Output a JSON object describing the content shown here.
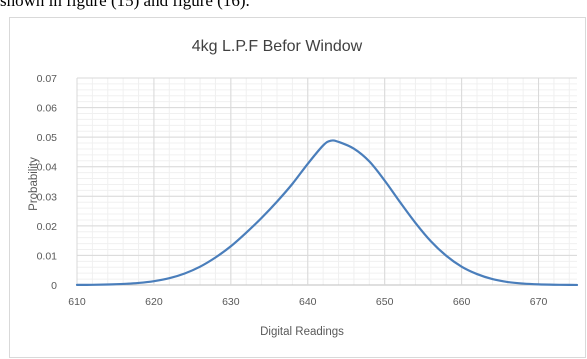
{
  "caption_fragment": "shown in figure (15) and figure (16).",
  "chart_data": {
    "type": "line",
    "title": "4kg L.P.F Befor Window",
    "xlabel": "Digital Readings",
    "ylabel": "Probability",
    "xlim": [
      610,
      675
    ],
    "ylim": [
      0,
      0.07
    ],
    "x_ticks": [
      "610",
      "620",
      "630",
      "640",
      "650",
      "660",
      "670"
    ],
    "y_ticks": [
      "0",
      "0.01",
      "0.02",
      "0.03",
      "0.04",
      "0.05",
      "0.06",
      "0.07"
    ],
    "grid": true,
    "series": [
      {
        "color": "#4a7ebb",
        "x": [
          610,
          612,
          614,
          616,
          618,
          620,
          622,
          624,
          626,
          628,
          630,
          632,
          634,
          636,
          638,
          640,
          642,
          643,
          644,
          646,
          648,
          650,
          652,
          654,
          656,
          658,
          660,
          662,
          664,
          666,
          668,
          670,
          672,
          674,
          675
        ],
        "y": [
          3e-05,
          7e-05,
          0.00016,
          0.00035,
          0.0007,
          0.0013,
          0.0023,
          0.0039,
          0.0062,
          0.0093,
          0.0131,
          0.0177,
          0.0227,
          0.0282,
          0.0342,
          0.041,
          0.0472,
          0.0488,
          0.0484,
          0.0461,
          0.0418,
          0.0353,
          0.028,
          0.021,
          0.0148,
          0.0099,
          0.0062,
          0.0037,
          0.002,
          0.001,
          0.00048,
          0.00021,
          9e-05,
          3e-05,
          2e-05
        ]
      }
    ]
  }
}
